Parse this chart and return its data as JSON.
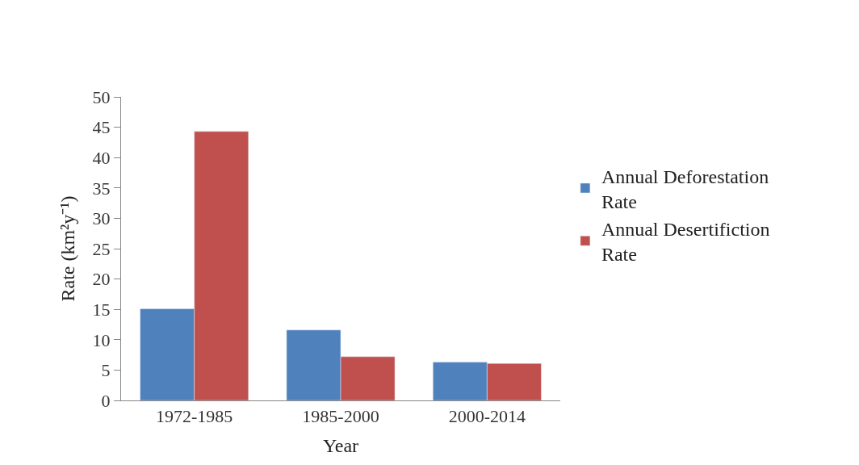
{
  "chart_data": {
    "type": "bar",
    "xlabel": "Year",
    "ylabel": "Rate (km²y⁻¹)",
    "categories": [
      "1972-1985",
      "1985-2000",
      "2000-2014"
    ],
    "series": [
      {
        "name": "Annual Deforestation Rate",
        "color": "#4f81bd",
        "values": [
          15.1,
          11.6,
          6.3
        ]
      },
      {
        "name": "Annual Desertifiction Rate",
        "color": "#c0504d",
        "values": [
          44.3,
          7.2,
          6.1
        ]
      }
    ],
    "ylim": [
      0,
      50
    ],
    "yticks": [
      0,
      5,
      10,
      15,
      20,
      25,
      30,
      35,
      40,
      45,
      50
    ],
    "legend": "right"
  }
}
